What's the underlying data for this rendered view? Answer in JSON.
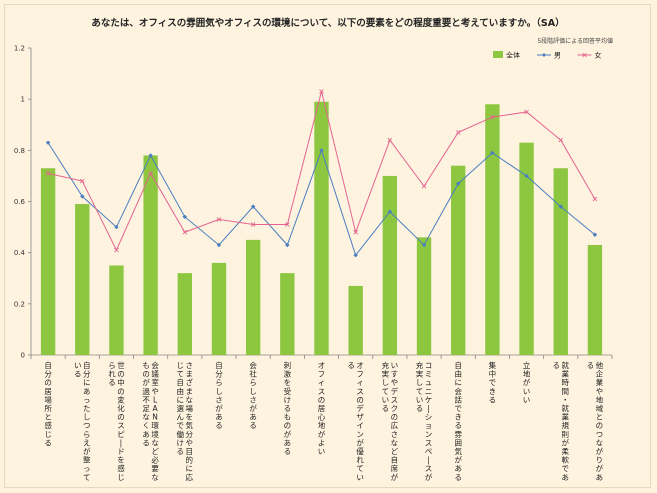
{
  "chart_data": {
    "type": "bar",
    "title": "あなたは、オフィスの雰囲気やオフィスの環境について、以下の要素をどの程度重要と考えていますか。（SA）",
    "note": "5段階評価による回答平均値",
    "ylim": [
      0,
      1.2
    ],
    "yticks": [
      "0",
      "0.2",
      "0.4",
      "0.6",
      "0.8",
      "1",
      "1.2"
    ],
    "ytick_values": [
      0,
      0.2,
      0.4,
      0.6,
      0.8,
      1.0,
      1.2
    ],
    "legend_position": "top-right",
    "categories": [
      "自分の居場所と感じる",
      "自分にあったしつらえが整っている",
      "世の中の変化のスピードを感じられる",
      "会議室やLAN環境など必要なものが過不足なくある",
      "さまざまな場を気分や目的に応じて自由に選んで働ける",
      "自分らしさがある",
      "会社らしさがある",
      "刺激を受けるものがある",
      "オフィスの居心地がよい",
      "オフィスのデザインが優れている",
      "いすやデスクの広さなど自席が充実している",
      "コミュニケーションスペースが充実している",
      "自由に会話できる雰囲気がある",
      "集中できる",
      "立地がいい",
      "就業時間・就業規則が柔軟である",
      "他企業や地域とのつながりがある"
    ],
    "series": [
      {
        "name": "全体",
        "kind": "bar",
        "color": "#8dc63f",
        "values": [
          0.73,
          0.59,
          0.35,
          0.78,
          0.32,
          0.36,
          0.45,
          0.32,
          0.99,
          0.27,
          0.7,
          0.46,
          0.74,
          0.98,
          0.83,
          0.73,
          0.43
        ]
      },
      {
        "name": "男",
        "kind": "line",
        "color": "#4a7ec0",
        "values": [
          0.83,
          0.62,
          0.5,
          0.78,
          0.54,
          0.43,
          0.58,
          0.43,
          0.8,
          0.39,
          0.56,
          0.43,
          0.67,
          0.79,
          0.7,
          0.58,
          0.47
        ]
      },
      {
        "name": "女",
        "kind": "line",
        "color": "#e5648f",
        "values": [
          0.71,
          0.68,
          0.41,
          0.71,
          0.48,
          0.53,
          0.51,
          0.51,
          1.03,
          0.48,
          0.84,
          0.66,
          0.87,
          0.93,
          0.95,
          0.84,
          0.61
        ]
      }
    ]
  }
}
